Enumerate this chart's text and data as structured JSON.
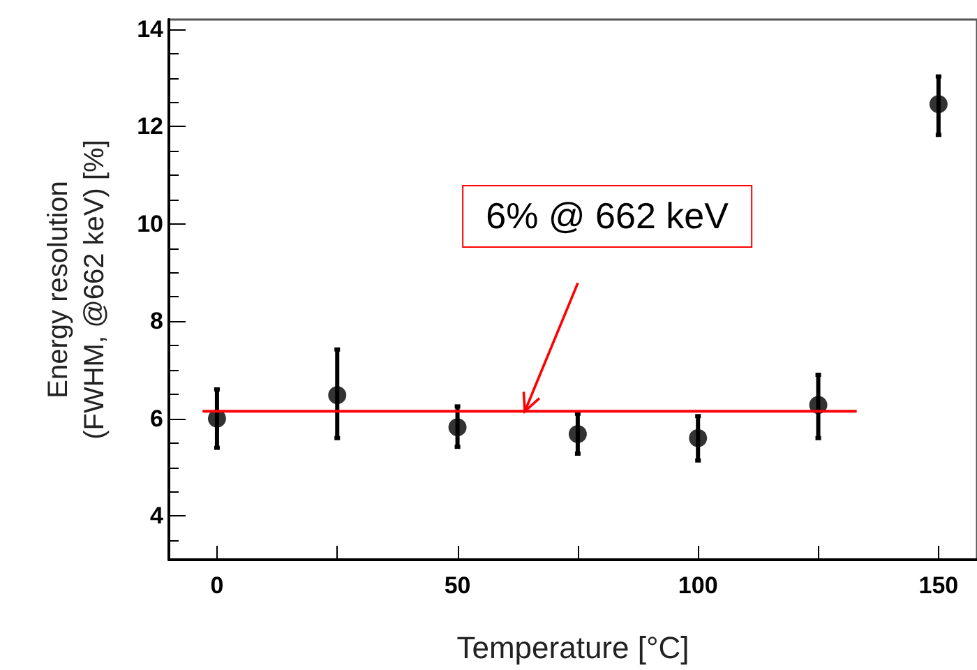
{
  "chart_data": {
    "type": "scatter",
    "xlabel": "Temperature [°C]",
    "ylabel": "Energy resolution\n(FWHM, @662 keV) [%]",
    "xlim": [
      -10,
      158
    ],
    "xticks": [
      0,
      {
        "value": 25,
        "label": null
      },
      50,
      {
        "value": 75,
        "label": null
      },
      100,
      {
        "value": 125,
        "label": null
      },
      150
    ],
    "ylim": [
      3.1,
      14.2
    ],
    "yticks": [
      4,
      6,
      8,
      10,
      12,
      14
    ],
    "series": [
      {
        "color": "#000000",
        "x": [
          0,
          25,
          50,
          75,
          100,
          125,
          150
        ],
        "values": [
          6.0,
          6.48,
          5.82,
          5.68,
          5.6,
          6.28,
          12.46
        ],
        "errors": [
          [
            5.4,
            6.6
          ],
          [
            5.6,
            7.42
          ],
          [
            5.42,
            6.25
          ],
          [
            5.28,
            6.1
          ],
          [
            5.14,
            6.05
          ],
          [
            5.6,
            6.9
          ],
          [
            11.83,
            13.03
          ]
        ],
        "marker": "circle"
      },
      {
        "type": "line",
        "color": "#ff0000",
        "x": [
          -3,
          133
        ],
        "values": [
          6.15,
          6.15
        ],
        "marker": "none",
        "line_style": "solid"
      }
    ],
    "annotations": [
      {
        "text": "6% @ 662 keV",
        "x": 64,
        "y": 6.15
      }
    ],
    "grid": false
  }
}
